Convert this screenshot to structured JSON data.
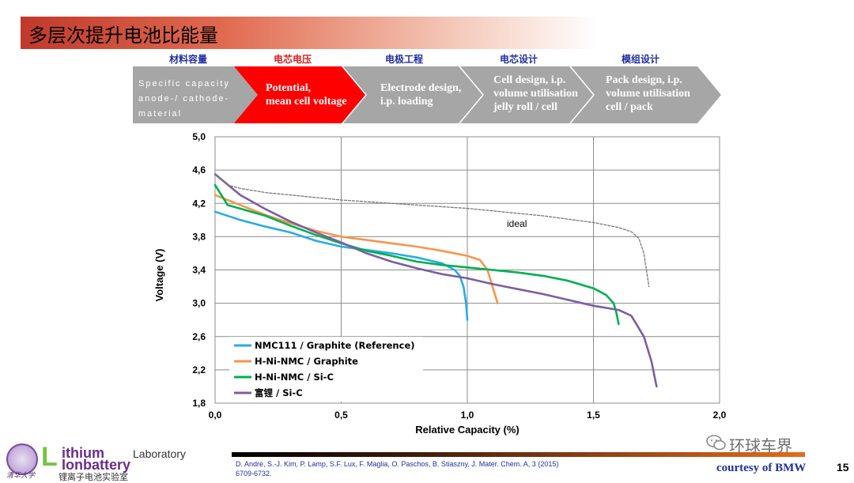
{
  "slide": {
    "title": "多层次提升电池比能量",
    "page_number": "15",
    "courtesy": "courtesy of BMW",
    "watermark": "环球车界",
    "reference_line1": "D. Andre, S.-J. Kim, P. Lamp, S.F. Lux, F. Maglia, O. Paschos, B. Stiaszny, J. Mater. Chem. A, 3 (2015)",
    "reference_line2": "6709-6732.",
    "lab": {
      "logo_cn": "清华大学",
      "big_letter": "L",
      "word1": "ithium",
      "word1_suffix": "Laboratory",
      "word2": "Ionbattery",
      "cn_name": "锂离子电池实验室"
    }
  },
  "process": {
    "steps": [
      {
        "label_cn": "材料容量",
        "lines": [
          "Specific capacity",
          "anode-/ cathode-",
          "material"
        ],
        "active": false
      },
      {
        "label_cn": "电芯电压",
        "lines": [
          "Potential,",
          "mean cell voltage"
        ],
        "active": true
      },
      {
        "label_cn": "电极工程",
        "lines": [
          "Electrode design,",
          "i.p. loading"
        ],
        "active": false
      },
      {
        "label_cn": "电芯设计",
        "lines": [
          "Cell design, i.p.",
          "volume utilisation",
          "jelly roll / cell"
        ],
        "active": false
      },
      {
        "label_cn": "模组设计",
        "lines": [
          "Pack  design, i.p.",
          "volume utilisation",
          "cell / pack"
        ],
        "active": false
      }
    ],
    "colors": {
      "inactive": "#a6a6a6",
      "active": "#ff0000"
    }
  },
  "chart_data": {
    "type": "line",
    "xlabel": "Relative Capacity (%)",
    "ylabel": "Voltage (V)",
    "xlim": [
      0,
      2.0
    ],
    "ylim": [
      1.8,
      5.0
    ],
    "x_ticks": [
      "0,0",
      "0,5",
      "1,0",
      "1,5",
      "2,0"
    ],
    "y_ticks": [
      "1,8",
      "2,2",
      "2,6",
      "3,0",
      "3,4",
      "3,8",
      "4,2",
      "4,6",
      "5,0"
    ],
    "grid": true,
    "legend_position": "bottom-left",
    "annotation": "ideal",
    "series": [
      {
        "name": "NMC111 / Graphite (Reference)",
        "color": "#29abe2",
        "dash": false,
        "points": [
          [
            0.0,
            4.1
          ],
          [
            0.1,
            4.0
          ],
          [
            0.2,
            3.92
          ],
          [
            0.3,
            3.85
          ],
          [
            0.4,
            3.75
          ],
          [
            0.5,
            3.68
          ],
          [
            0.6,
            3.64
          ],
          [
            0.7,
            3.6
          ],
          [
            0.8,
            3.55
          ],
          [
            0.9,
            3.48
          ],
          [
            0.95,
            3.4
          ],
          [
            0.97,
            3.33
          ],
          [
            0.985,
            3.2
          ],
          [
            0.995,
            3.0
          ],
          [
            1.0,
            2.8
          ]
        ]
      },
      {
        "name": "H-Ni-NMC / Graphite",
        "color": "#f7964a",
        "dash": false,
        "points": [
          [
            0.0,
            4.3
          ],
          [
            0.1,
            4.18
          ],
          [
            0.2,
            4.06
          ],
          [
            0.3,
            3.96
          ],
          [
            0.4,
            3.87
          ],
          [
            0.5,
            3.8
          ],
          [
            0.6,
            3.76
          ],
          [
            0.7,
            3.72
          ],
          [
            0.8,
            3.68
          ],
          [
            0.9,
            3.63
          ],
          [
            1.0,
            3.57
          ],
          [
            1.05,
            3.52
          ],
          [
            1.08,
            3.4
          ],
          [
            1.1,
            3.2
          ],
          [
            1.12,
            3.0
          ]
        ]
      },
      {
        "name": "H-Ni-NMC / Si-C",
        "color": "#00b050",
        "dash": false,
        "points": [
          [
            0.0,
            4.42
          ],
          [
            0.05,
            4.18
          ],
          [
            0.2,
            4.05
          ],
          [
            0.3,
            3.93
          ],
          [
            0.4,
            3.82
          ],
          [
            0.5,
            3.72
          ],
          [
            0.6,
            3.63
          ],
          [
            0.7,
            3.57
          ],
          [
            0.8,
            3.5
          ],
          [
            0.9,
            3.46
          ],
          [
            1.0,
            3.43
          ],
          [
            1.1,
            3.4
          ],
          [
            1.2,
            3.37
          ],
          [
            1.3,
            3.33
          ],
          [
            1.4,
            3.27
          ],
          [
            1.5,
            3.18
          ],
          [
            1.55,
            3.1
          ],
          [
            1.58,
            3.0
          ],
          [
            1.59,
            2.9
          ],
          [
            1.6,
            2.75
          ]
        ]
      },
      {
        "name": "富锂 / Si-C",
        "color": "#7b5fa3",
        "dash": false,
        "points": [
          [
            0.0,
            4.55
          ],
          [
            0.1,
            4.3
          ],
          [
            0.2,
            4.13
          ],
          [
            0.3,
            3.98
          ],
          [
            0.4,
            3.85
          ],
          [
            0.5,
            3.73
          ],
          [
            0.6,
            3.6
          ],
          [
            0.7,
            3.5
          ],
          [
            0.8,
            3.42
          ],
          [
            0.9,
            3.35
          ],
          [
            1.0,
            3.3
          ],
          [
            1.1,
            3.23
          ],
          [
            1.2,
            3.17
          ],
          [
            1.3,
            3.11
          ],
          [
            1.4,
            3.04
          ],
          [
            1.5,
            2.97
          ],
          [
            1.6,
            2.92
          ],
          [
            1.65,
            2.85
          ],
          [
            1.7,
            2.6
          ],
          [
            1.73,
            2.3
          ],
          [
            1.75,
            2.0
          ]
        ]
      },
      {
        "name": "ideal",
        "color": "#777777",
        "dash": true,
        "points": [
          [
            0.0,
            4.55
          ],
          [
            0.05,
            4.42
          ],
          [
            0.1,
            4.38
          ],
          [
            0.2,
            4.33
          ],
          [
            0.3,
            4.3
          ],
          [
            0.4,
            4.27
          ],
          [
            0.5,
            4.24
          ],
          [
            0.6,
            4.22
          ],
          [
            0.7,
            4.2
          ],
          [
            0.8,
            4.18
          ],
          [
            0.9,
            4.16
          ],
          [
            1.0,
            4.14
          ],
          [
            1.1,
            4.11
          ],
          [
            1.2,
            4.08
          ],
          [
            1.3,
            4.05
          ],
          [
            1.4,
            4.01
          ],
          [
            1.5,
            3.97
          ],
          [
            1.6,
            3.91
          ],
          [
            1.65,
            3.86
          ],
          [
            1.68,
            3.78
          ],
          [
            1.7,
            3.6
          ],
          [
            1.71,
            3.4
          ],
          [
            1.72,
            3.2
          ]
        ]
      }
    ]
  }
}
